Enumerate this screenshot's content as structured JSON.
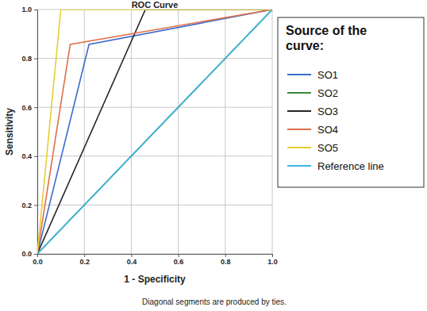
{
  "chart_data": {
    "type": "line",
    "title": "ROC Curve",
    "x_label": "1 - Specificity",
    "y_label": "Sensitivity",
    "legend_title": "Source of the curve:",
    "footnote": "Diagonal segments are produced by ties.",
    "legend": "right",
    "grid": true,
    "xlim": [
      0,
      1
    ],
    "ylim": [
      0,
      1
    ],
    "xticks": [
      {
        "value": 0,
        "label": "0.0"
      },
      {
        "value": 0.2,
        "label": "0.2"
      },
      {
        "value": 0.4,
        "label": "0.4"
      },
      {
        "value": 0.6,
        "label": "0.6"
      },
      {
        "value": 0.8,
        "label": "0.8"
      },
      {
        "value": 1,
        "label": "1.0"
      }
    ],
    "yticks": [
      {
        "value": 0,
        "label": "0.0"
      },
      {
        "value": 0.2,
        "label": "0.2"
      },
      {
        "value": 0.4,
        "label": "0.4"
      },
      {
        "value": 0.6,
        "label": "0.6"
      },
      {
        "value": 0.8,
        "label": "0.8"
      },
      {
        "value": 1,
        "label": "1.0"
      }
    ],
    "series": [
      {
        "name": "SO1",
        "color": "#3d6cc9",
        "x": [
          0,
          0.22,
          1
        ],
        "values": [
          0,
          0.857,
          1
        ]
      },
      {
        "name": "SO2",
        "color": "#3a8a3a",
        "x": [
          0,
          1
        ],
        "values": [
          0,
          1
        ]
      },
      {
        "name": "SO3",
        "color": "#262626",
        "x": [
          0,
          0.46,
          1
        ],
        "values": [
          0,
          1,
          1
        ]
      },
      {
        "name": "SO4",
        "color": "#e0704a",
        "x": [
          0,
          0.14,
          1
        ],
        "values": [
          0,
          0.857,
          1
        ]
      },
      {
        "name": "SO5",
        "color": "#e6cf33",
        "x": [
          0,
          0.1,
          1
        ],
        "values": [
          0,
          1,
          1
        ]
      },
      {
        "name": "Reference line",
        "color": "#3bb4e3",
        "x": [
          0,
          1
        ],
        "values": [
          0,
          1
        ]
      }
    ]
  }
}
